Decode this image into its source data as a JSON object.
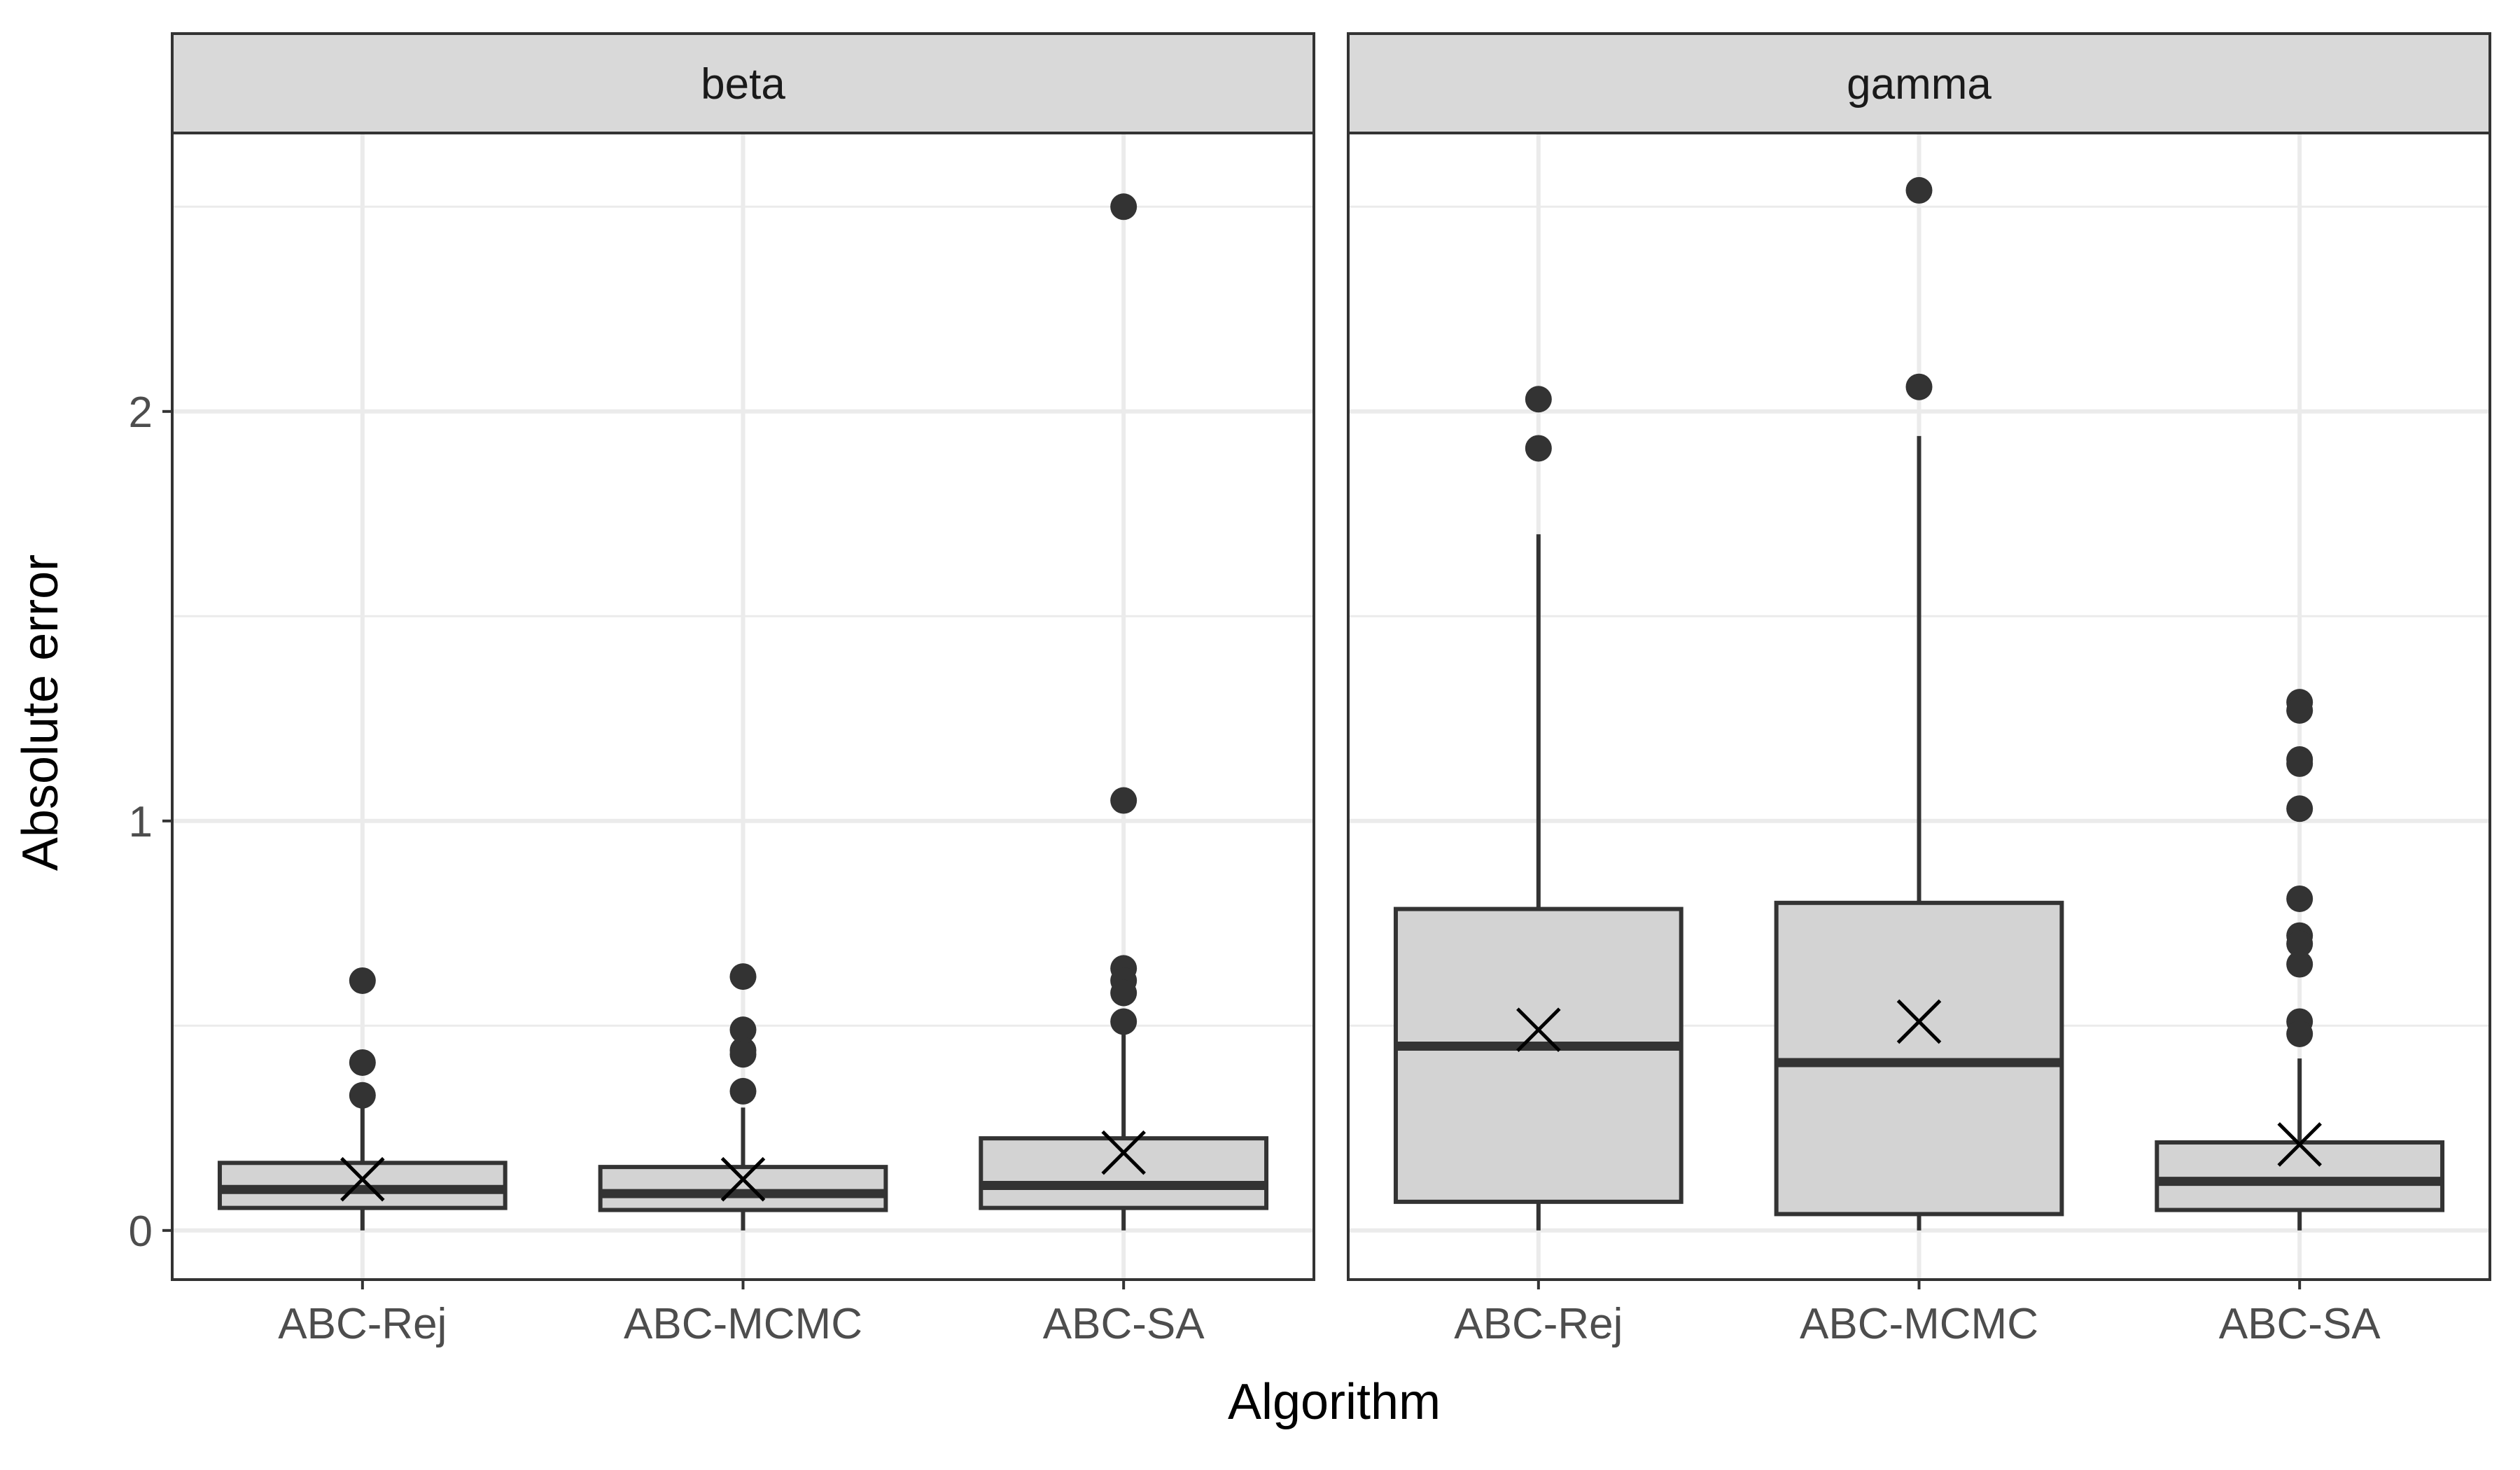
{
  "chart_data": {
    "type": "box",
    "xlabel": "Algorithm",
    "ylabel": "Absolute error",
    "ylim": [
      -0.12,
      2.68
    ],
    "yticks": [
      0,
      1,
      2
    ],
    "ytick_labels": [
      "0",
      "1",
      "2"
    ],
    "grid": true,
    "categories": [
      "ABC-Rej",
      "ABC-MCMC",
      "ABC-SA"
    ],
    "colors": {
      "box_fill": "#d3d3d3",
      "box_stroke": "#333333",
      "strip_fill": "#d9d9d9",
      "grid_major": "#ebebeb",
      "mean_marker": "#000000"
    },
    "facets": [
      {
        "label": "beta",
        "boxes": [
          {
            "category": "ABC-Rej",
            "whisker_low": 0.0,
            "q1": 0.055,
            "median": 0.1,
            "q3": 0.165,
            "whisker_high": 0.3,
            "mean": 0.125,
            "outliers": [
              0.61,
              0.41,
              0.33
            ]
          },
          {
            "category": "ABC-MCMC",
            "whisker_low": 0.0,
            "q1": 0.05,
            "median": 0.09,
            "q3": 0.155,
            "whisker_high": 0.3,
            "mean": 0.125,
            "outliers": [
              0.62,
              0.49,
              0.44,
              0.43,
              0.34
            ]
          },
          {
            "category": "ABC-SA",
            "whisker_low": 0.0,
            "q1": 0.055,
            "median": 0.11,
            "q3": 0.225,
            "whisker_high": 0.5,
            "mean": 0.19,
            "outliers": [
              2.5,
              1.05,
              0.64,
              0.61,
              0.58,
              0.51
            ]
          }
        ]
      },
      {
        "label": "gamma",
        "boxes": [
          {
            "category": "ABC-Rej",
            "whisker_low": 0.0,
            "q1": 0.07,
            "median": 0.45,
            "q3": 0.785,
            "whisker_high": 1.7,
            "mean": 0.49,
            "outliers": [
              2.03,
              1.91
            ]
          },
          {
            "category": "ABC-MCMC",
            "whisker_low": 0.0,
            "q1": 0.04,
            "median": 0.41,
            "q3": 0.8,
            "whisker_high": 1.94,
            "mean": 0.51,
            "outliers": [
              2.54,
              2.06
            ]
          },
          {
            "category": "ABC-SA",
            "whisker_low": 0.0,
            "q1": 0.05,
            "median": 0.12,
            "q3": 0.215,
            "whisker_high": 0.42,
            "mean": 0.21,
            "outliers": [
              1.29,
              1.27,
              1.15,
              1.14,
              1.03,
              0.81,
              0.72,
              0.7,
              0.65,
              0.51,
              0.48
            ]
          }
        ]
      }
    ]
  }
}
